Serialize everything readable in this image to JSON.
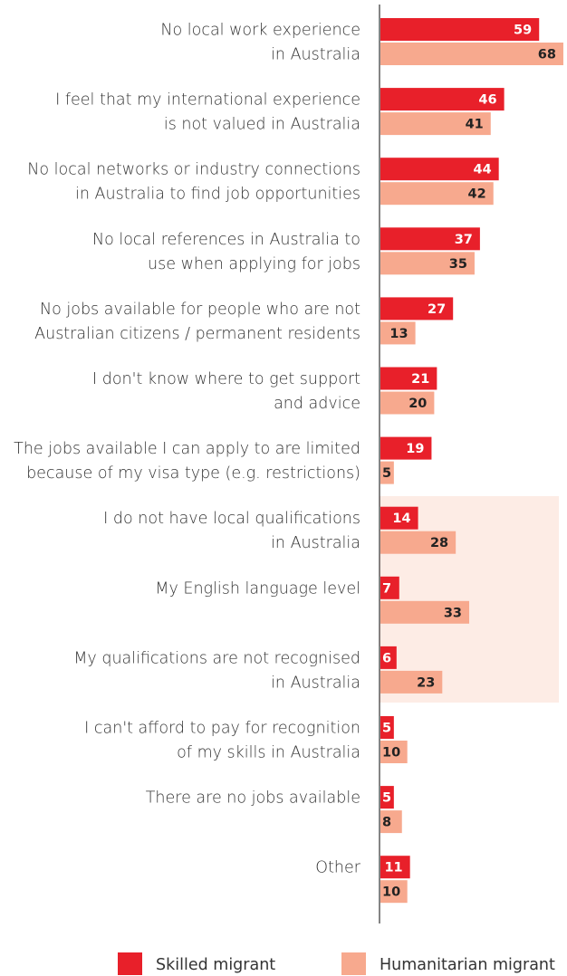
{
  "chart_data": {
    "type": "bar",
    "orientation": "horizontal",
    "categories": [
      [
        "No local work experience",
        "in Australia"
      ],
      [
        "I feel that my international experience",
        "is not valued in Australia"
      ],
      [
        "No local networks or industry connections",
        "in Australia to find job opportunities"
      ],
      [
        "No local references in Australia to",
        "use when applying for jobs"
      ],
      [
        "No jobs available for people who are not",
        "Australian citizens / permanent residents"
      ],
      [
        "I don't know where to get support",
        "and advice"
      ],
      [
        "The jobs available I can apply to are limited",
        "because of my visa type (e.g. restrictions)"
      ],
      [
        "I do not have local qualifications",
        "in Australia"
      ],
      [
        "My English language level"
      ],
      [
        "My qualifications are not recognised",
        "in Australia"
      ],
      [
        "I can't afford to pay for recognition",
        "of my skills in Australia"
      ],
      [
        "There are no jobs available"
      ],
      [
        "Other"
      ]
    ],
    "series": [
      {
        "name": "Skilled migrant",
        "color": "#e8202a",
        "label_color": "#ffffff",
        "values": [
          59,
          46,
          44,
          37,
          27,
          21,
          19,
          14,
          7,
          6,
          5,
          5,
          11
        ]
      },
      {
        "name": "Humanitarian migrant",
        "color": "#f7a98e",
        "label_color": "#222222",
        "values": [
          68,
          41,
          42,
          35,
          13,
          20,
          5,
          28,
          33,
          23,
          10,
          8,
          10
        ]
      }
    ],
    "legend": "bottom"
  }
}
